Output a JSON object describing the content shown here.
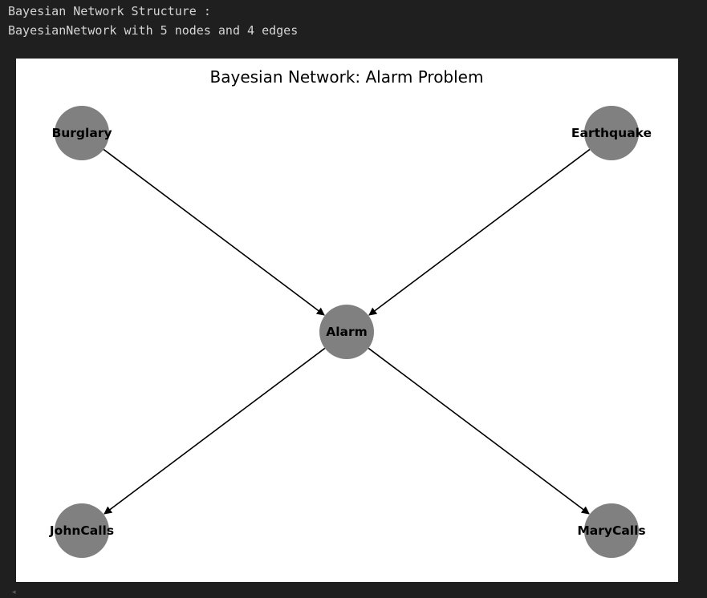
{
  "console": {
    "line1": "Bayesian Network Structure :",
    "line2": "BayesianNetwork with 5 nodes and 4 edges"
  },
  "figure": {
    "title": "Bayesian Network: Alarm Problem",
    "node_color": "#808080",
    "edge_color": "#000000",
    "nodes": [
      {
        "id": "Burglary",
        "label": "Burglary"
      },
      {
        "id": "Earthquake",
        "label": "Earthquake"
      },
      {
        "id": "Alarm",
        "label": "Alarm"
      },
      {
        "id": "JohnCalls",
        "label": "JohnCalls"
      },
      {
        "id": "MaryCalls",
        "label": "MaryCalls"
      }
    ],
    "edges": [
      {
        "from": "Burglary",
        "to": "Alarm"
      },
      {
        "from": "Earthquake",
        "to": "Alarm"
      },
      {
        "from": "Alarm",
        "to": "JohnCalls"
      },
      {
        "from": "Alarm",
        "to": "MaryCalls"
      }
    ]
  }
}
